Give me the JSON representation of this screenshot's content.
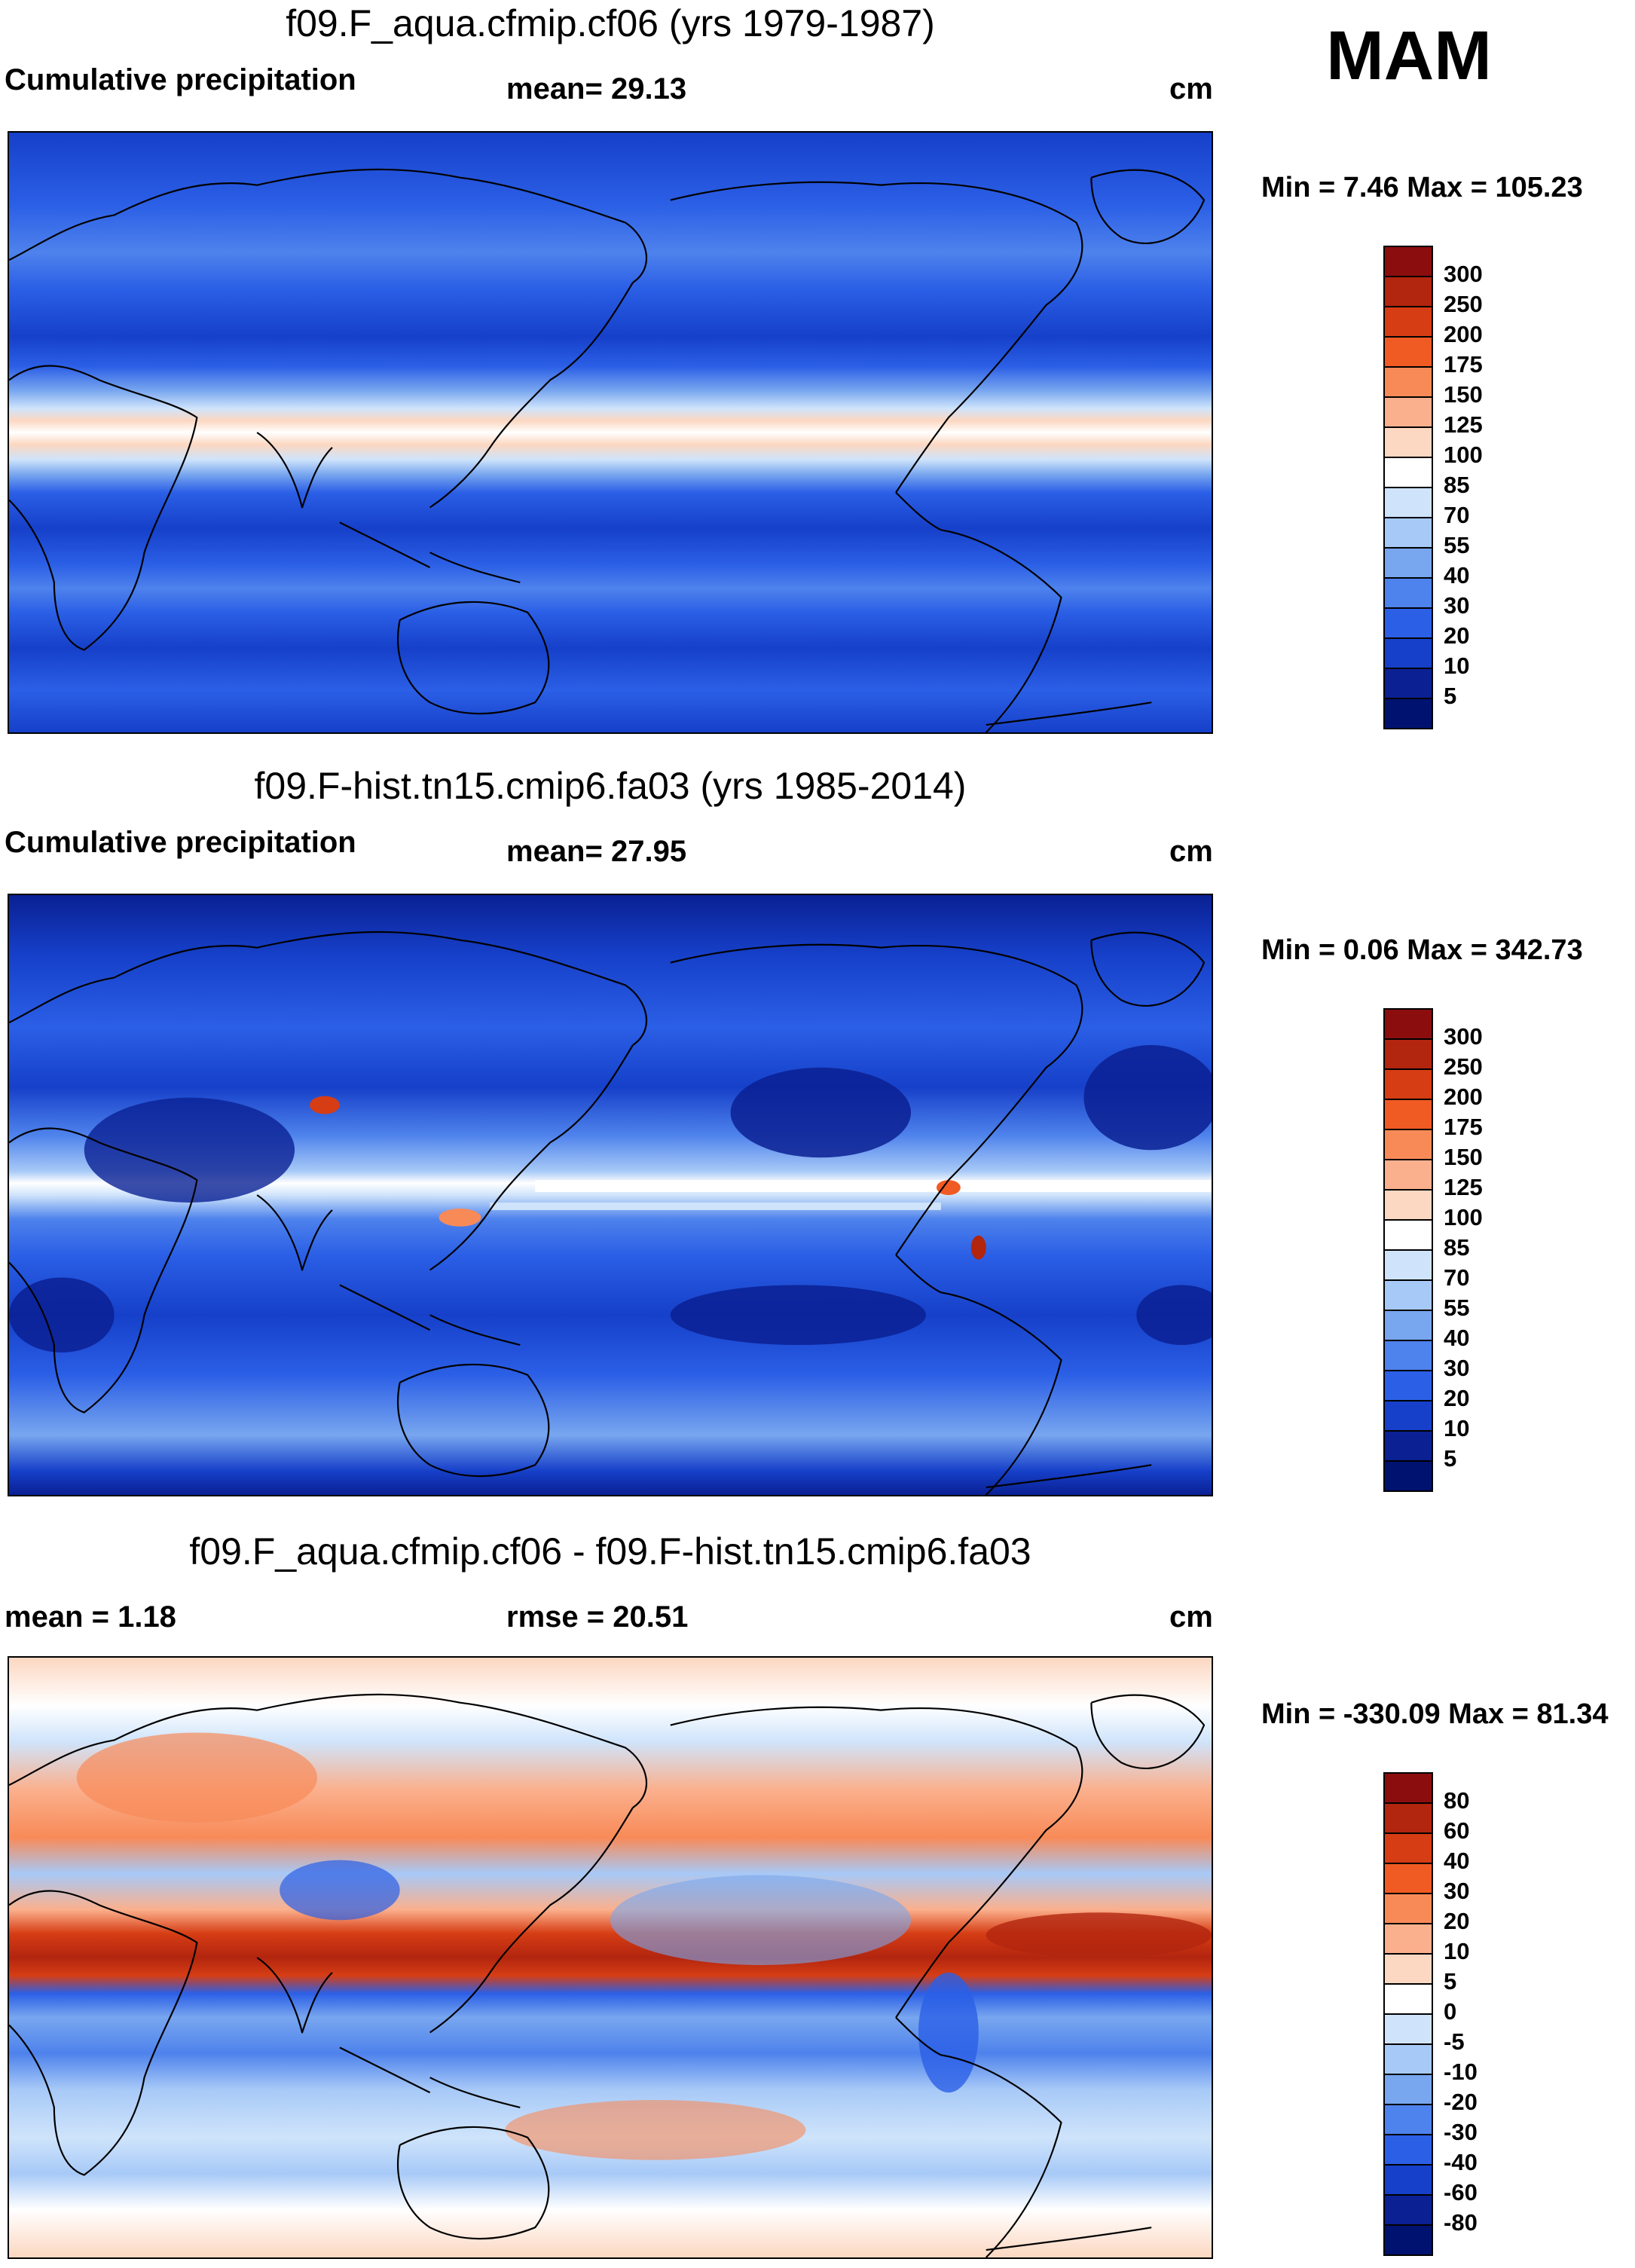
{
  "season": "MAM",
  "panels": [
    {
      "title": "f09.F_aqua.cfmip.cf06 (yrs 1979-1987)",
      "left_label": "Cumulative precipitation",
      "center_label": "mean=  29.13",
      "units": "cm",
      "minmax": "Min =   7.46 Max = 105.23",
      "colorbar": {
        "levels": [
          "300",
          "250",
          "200",
          "175",
          "150",
          "125",
          "100",
          "85",
          "70",
          "55",
          "40",
          "30",
          "20",
          "10",
          "5"
        ],
        "colors": [
          "#8c0d0d",
          "#b2250f",
          "#d63d14",
          "#f05a23",
          "#f88a58",
          "#fbb08d",
          "#fcd7c1",
          "#ffffff",
          "#cfe4fb",
          "#a7c9f7",
          "#78a6ef",
          "#4e82ec",
          "#2b5fe6",
          "#1640c9",
          "#0a2093",
          "#001270"
        ]
      }
    },
    {
      "title": "f09.F-hist.tn15.cmip6.fa03 (yrs 1985-2014)",
      "left_label": "Cumulative precipitation",
      "center_label": "mean=  27.95",
      "units": "cm",
      "minmax": "Min =   0.06 Max = 342.73",
      "colorbar": {
        "levels": [
          "300",
          "250",
          "200",
          "175",
          "150",
          "125",
          "100",
          "85",
          "70",
          "55",
          "40",
          "30",
          "20",
          "10",
          "5"
        ],
        "colors": [
          "#8c0d0d",
          "#b2250f",
          "#d63d14",
          "#f05a23",
          "#f88a58",
          "#fbb08d",
          "#fcd7c1",
          "#ffffff",
          "#cfe4fb",
          "#a7c9f7",
          "#78a6ef",
          "#4e82ec",
          "#2b5fe6",
          "#1640c9",
          "#0a2093",
          "#001270"
        ]
      }
    },
    {
      "title": "f09.F_aqua.cfmip.cf06 - f09.F-hist.tn15.cmip6.fa03",
      "left_label": "mean =   1.18",
      "center_label": "rmse =  20.51",
      "units": "cm",
      "minmax": "Min = -330.09 Max =  81.34",
      "colorbar": {
        "levels": [
          "80",
          "60",
          "40",
          "30",
          "20",
          "10",
          "5",
          "0",
          "-5",
          "-10",
          "-20",
          "-30",
          "-40",
          "-60",
          "-80"
        ],
        "colors": [
          "#8c0d0d",
          "#b2250f",
          "#d63d14",
          "#f05a23",
          "#f88a58",
          "#fbb08d",
          "#fcd7c1",
          "#ffffff",
          "#cfe4fb",
          "#a7c9f7",
          "#78a6ef",
          "#4e82ec",
          "#2b5fe6",
          "#1640c9",
          "#0a2093",
          "#001270"
        ]
      }
    }
  ]
}
